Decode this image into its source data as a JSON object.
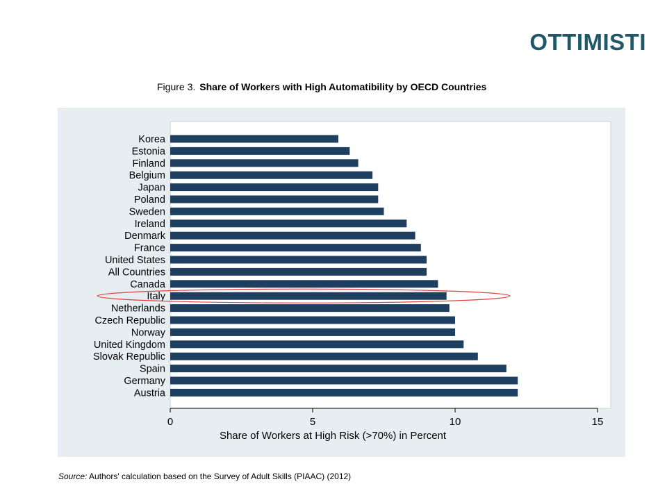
{
  "slide": {
    "title": "OTTIMISTI"
  },
  "figure": {
    "label": "Figure 3.",
    "title": "Share of Workers with High Automatibility by OECD Countries",
    "source_label": "Source:",
    "source_text": "Authors' calculation based on the Survey of Adult Skills (PIAAC) (2012)"
  },
  "chart_data": {
    "type": "bar",
    "orientation": "horizontal",
    "title": "Share of Workers with High Automatibility by OECD Countries",
    "xlabel": "Share of Workers at High Risk (>70%) in Percent",
    "ylabel": "",
    "xlim": [
      0,
      15
    ],
    "xticks": [
      0,
      5,
      10,
      15
    ],
    "categories": [
      "Korea",
      "Estonia",
      "Finland",
      "Belgium",
      "Japan",
      "Poland",
      "Sweden",
      "Ireland",
      "Denmark",
      "France",
      "United States",
      "All Countries",
      "Canada",
      "Italy",
      "Netherlands",
      "Czech Republic",
      "Norway",
      "United Kingdom",
      "Slovak Republic",
      "Spain",
      "Germany",
      "Austria"
    ],
    "values": [
      5.9,
      6.3,
      6.6,
      7.1,
      7.3,
      7.3,
      7.5,
      8.3,
      8.6,
      8.8,
      9.0,
      9.0,
      9.4,
      9.7,
      9.8,
      10.0,
      10.0,
      10.3,
      10.8,
      11.8,
      12.2,
      12.2
    ],
    "highlight": "Italy",
    "bar_color": "#1f3f60",
    "highlight_color": "#e04040",
    "grid": false
  }
}
